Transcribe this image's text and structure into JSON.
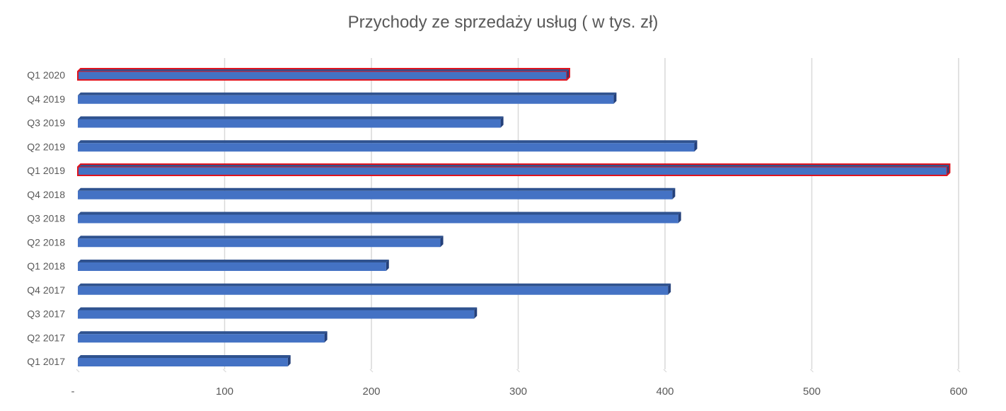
{
  "chart_data": {
    "type": "bar",
    "orientation": "horizontal",
    "title": "Przychody ze sprzedaży usług ( w tys. zł)",
    "xlabel": "",
    "ylabel": "",
    "categories": [
      "Q1 2020",
      "Q4 2019",
      "Q3 2019",
      "Q2 2019",
      "Q1 2019",
      "Q4 2018",
      "Q3 2018",
      "Q2 2018",
      "Q1 2018",
      "Q4 2017",
      "Q3 2017",
      "Q2 2017",
      "Q1 2017"
    ],
    "values": [
      333,
      365,
      288,
      420,
      592,
      405,
      409,
      247,
      210,
      402,
      270,
      168,
      143
    ],
    "highlighted": [
      "Q1 2020",
      "Q1 2019"
    ],
    "xlim": [
      0,
      600
    ],
    "x_ticks": [
      "-",
      "100",
      "200",
      "300",
      "400",
      "500",
      "600"
    ],
    "grid": "vertical",
    "legend": "none",
    "colors": {
      "bar_fill": "#4472C4",
      "bar_top": "#2F528F",
      "bar_side": "#24407A",
      "highlight_outline": "#E0141E",
      "grid": "#D9D9D9",
      "text": "#595959"
    }
  }
}
